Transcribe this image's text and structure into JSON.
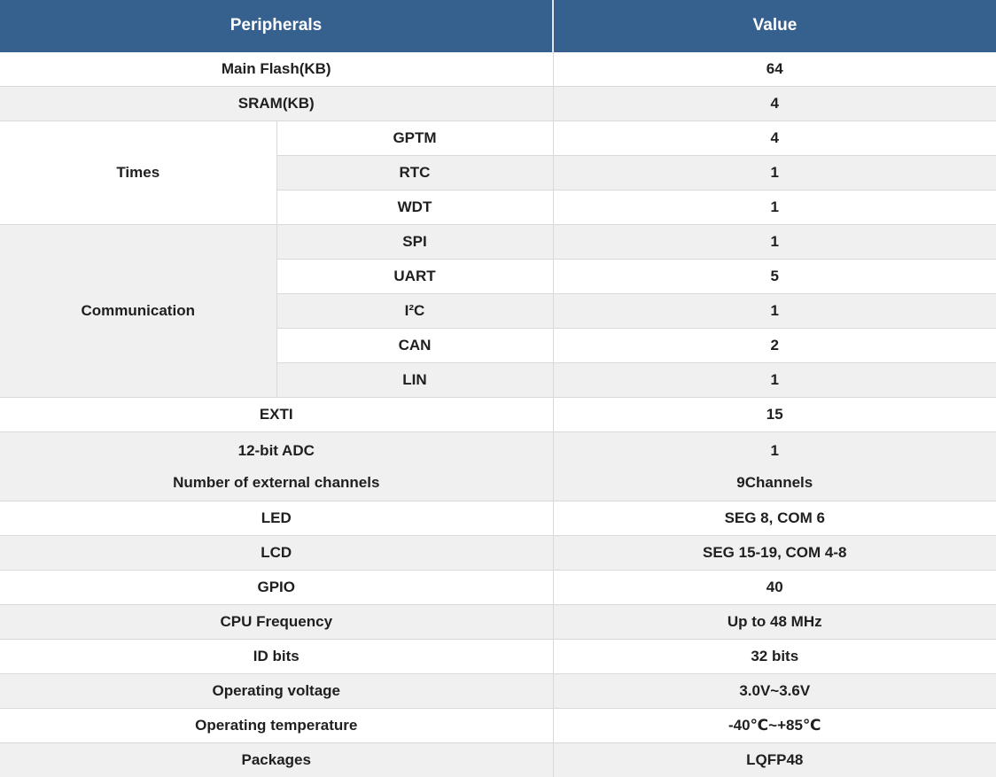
{
  "chart_data": {
    "type": "table",
    "header": {
      "peripherals": "Peripherals",
      "value": "Value"
    },
    "groups": {
      "times": {
        "label": "Times",
        "rowspan": 3
      },
      "communication": {
        "label": "Communication",
        "rowspan": 5
      }
    },
    "rows": {
      "main_flash": {
        "label": "Main Flash(KB)",
        "value": "64"
      },
      "sram": {
        "label": "SRAM(KB)",
        "value": "4"
      },
      "gptm": {
        "label": "GPTM",
        "value": "4",
        "group": "Times"
      },
      "rtc": {
        "label": "RTC",
        "value": "1",
        "group": "Times"
      },
      "wdt": {
        "label": "WDT",
        "value": "1",
        "group": "Times"
      },
      "spi": {
        "label": "SPI",
        "value": "1",
        "group": "Communication"
      },
      "uart": {
        "label": "UART",
        "value": "5",
        "group": "Communication"
      },
      "i2c": {
        "label": "I²C",
        "value": "1",
        "group": "Communication"
      },
      "can": {
        "label": "CAN",
        "value": "2",
        "group": "Communication"
      },
      "lin": {
        "label": "LIN",
        "value": "1",
        "group": "Communication"
      },
      "exti": {
        "label": "EXTI",
        "value": "15"
      },
      "adc": {
        "label_line1": "12-bit ADC",
        "label_line2": "Number of external channels",
        "value_line1": "1",
        "value_line2": "9Channels"
      },
      "led": {
        "label": "LED",
        "value": "SEG 8, COM 6"
      },
      "lcd": {
        "label": "LCD",
        "value": "SEG 15-19, COM 4-8"
      },
      "gpio": {
        "label": "GPIO",
        "value": "40"
      },
      "cpu_frequency": {
        "label": "CPU Frequency",
        "value": "Up to 48 MHz"
      },
      "id_bits": {
        "label": "ID bits",
        "value": "32 bits"
      },
      "operating_voltage": {
        "label": "Operating voltage",
        "value": "3.0V~3.6V"
      },
      "operating_temperature": {
        "label": "Operating temperature",
        "value": "-40℃~+85℃"
      },
      "packages": {
        "label": "Packages",
        "value": "LQFP48"
      }
    }
  },
  "colors": {
    "header_bg": "#36618f",
    "header_text": "#ffffff",
    "row_white": "#ffffff",
    "row_gray": "#f0f0f0",
    "border": "#d9d9d9",
    "header_divider": "#e4e4ee",
    "text": "#1f1f1f"
  }
}
